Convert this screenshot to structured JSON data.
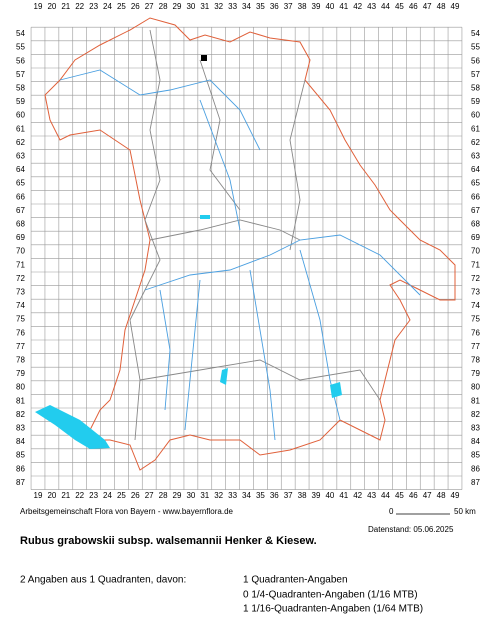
{
  "grid": {
    "columns": [
      19,
      20,
      21,
      22,
      23,
      24,
      25,
      26,
      27,
      28,
      29,
      30,
      31,
      32,
      33,
      34,
      35,
      36,
      37,
      38,
      39,
      40,
      41,
      42,
      43,
      44,
      45,
      46,
      47,
      48,
      49
    ],
    "rows": [
      54,
      55,
      56,
      57,
      58,
      59,
      60,
      61,
      62,
      63,
      64,
      65,
      66,
      67,
      68,
      69,
      70,
      71,
      72,
      73,
      74,
      75,
      76,
      77,
      78,
      79,
      80,
      81,
      82,
      83,
      84,
      85,
      86,
      87
    ]
  },
  "footer": {
    "credit": "Arbeitsgemeinschaft Flora von Bayern - www.bayernflora.de",
    "scale_start": "0",
    "scale_end": "50 km",
    "date": "Datenstand: 05.06.2025"
  },
  "title": "Rubus grabowskii subsp. walsemannii Henker & Kiesew.",
  "summary": {
    "total": "2 Angaben aus 1 Quadranten, davon:",
    "lines": [
      "1 Quadranten-Angaben",
      "0 1/4-Quadranten-Angaben (1/16 MTB)",
      "1 1/16-Quadranten-Angaben (1/64 MTB)"
    ]
  }
}
